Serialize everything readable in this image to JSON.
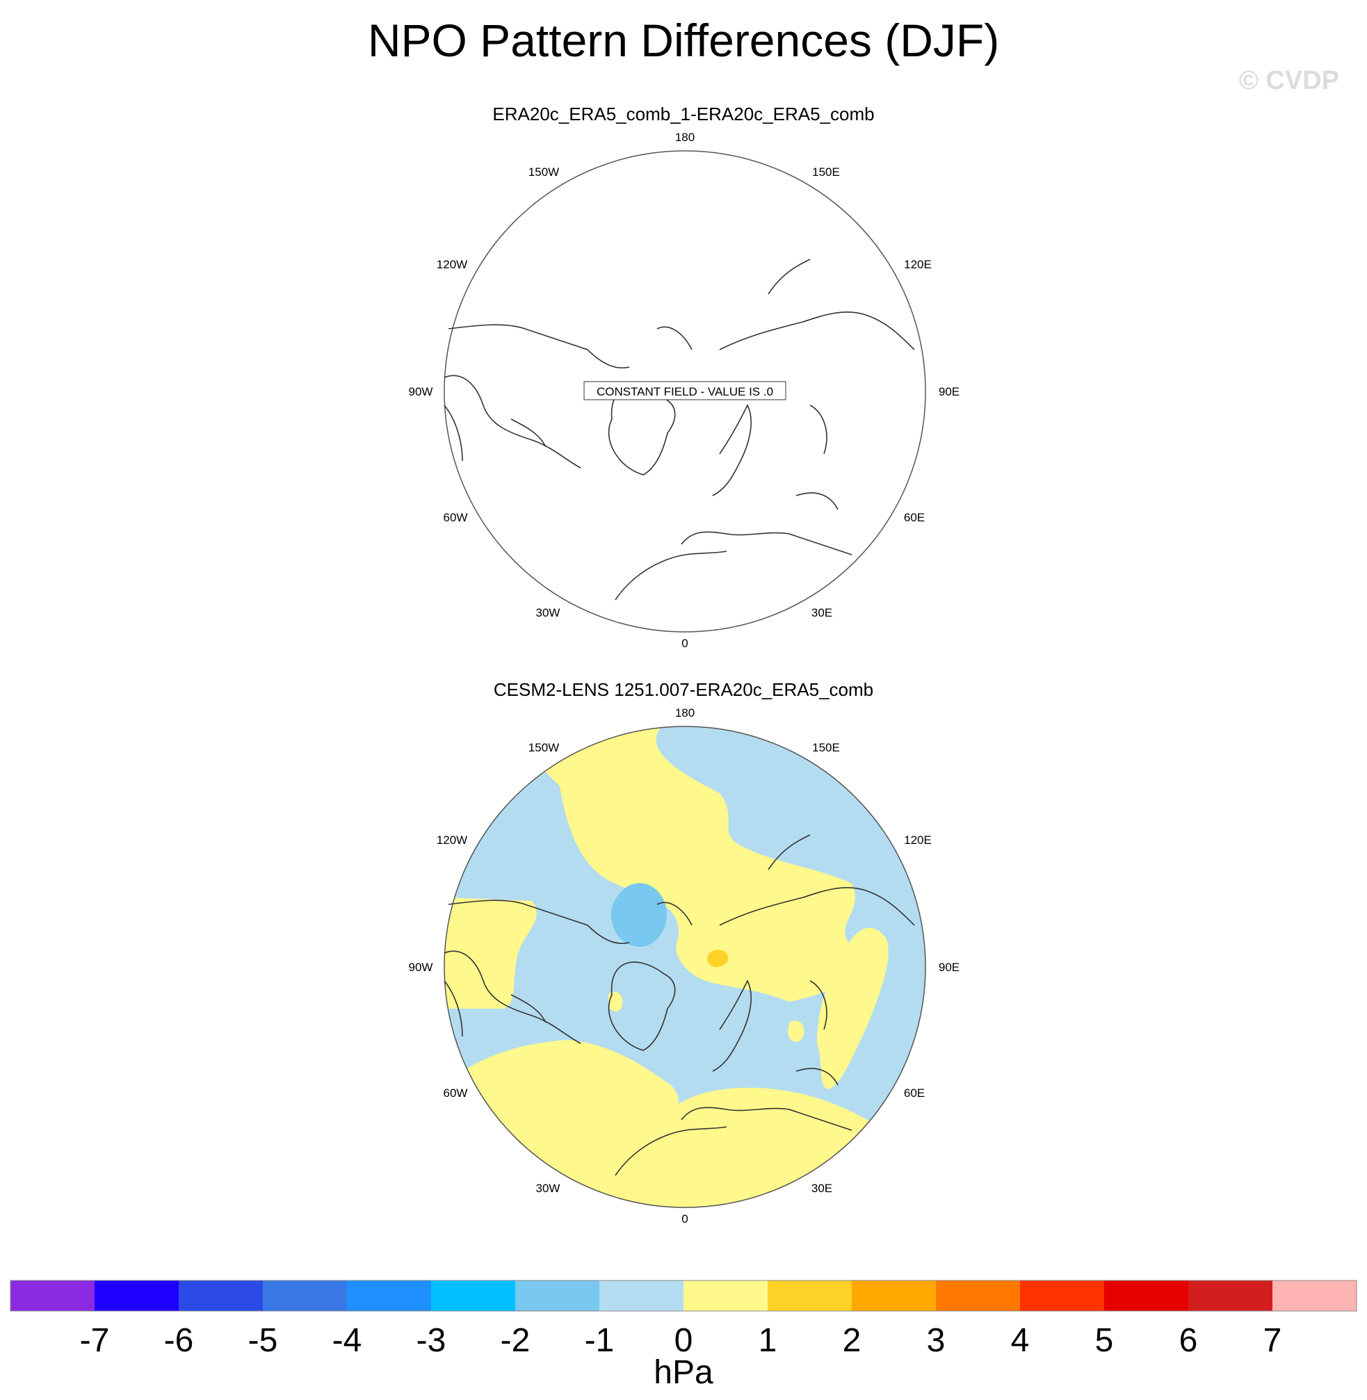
{
  "title": "NPO Pattern Differences (DJF)",
  "watermark": "© CVDP",
  "panels": [
    {
      "title": "ERA20c_ERA5_comb_1-ERA20c_ERA5_comb",
      "annotation": "CONSTANT FIELD - VALUE IS .0",
      "lon_labels": {
        "n": "180",
        "nne": "150E",
        "ene": "120E",
        "e": "90E",
        "ese": "60E",
        "sse": "30E",
        "s": "0",
        "ssw": "30W",
        "wsw": "60W",
        "w": "90W",
        "wnw": "120W",
        "nnw": "150W"
      }
    },
    {
      "title": "CESM2-LENS 1251.007-ERA20c_ERA5_comb",
      "lon_labels": {
        "n": "180",
        "nne": "150E",
        "ene": "120E",
        "e": "90E",
        "ese": "60E",
        "sse": "30E",
        "s": "0",
        "ssw": "30W",
        "wsw": "60W",
        "w": "90W",
        "wnw": "120W",
        "nnw": "150W"
      }
    }
  ],
  "colorbar": {
    "units": "hPa",
    "tick_labels": [
      "-7",
      "-6",
      "-5",
      "-4",
      "-3",
      "-2",
      "-1",
      "0",
      "1",
      "2",
      "3",
      "4",
      "5",
      "6",
      "7"
    ],
    "colors": [
      "#8a2be2",
      "#1e00ff",
      "#2b4ae6",
      "#3b78e7",
      "#1e90ff",
      "#00c0ff",
      "#78c8f0",
      "#b4dcf0",
      "#fff88c",
      "#ffd228",
      "#ffa800",
      "#ff7800",
      "#ff3200",
      "#e60000",
      "#d21e1e",
      "#ffb4b4"
    ]
  },
  "colors": {
    "negative_small": "#b4dcf0",
    "negative_medium": "#78c8f0",
    "positive_small": "#fff88c",
    "positive_medium": "#ffd228"
  }
}
